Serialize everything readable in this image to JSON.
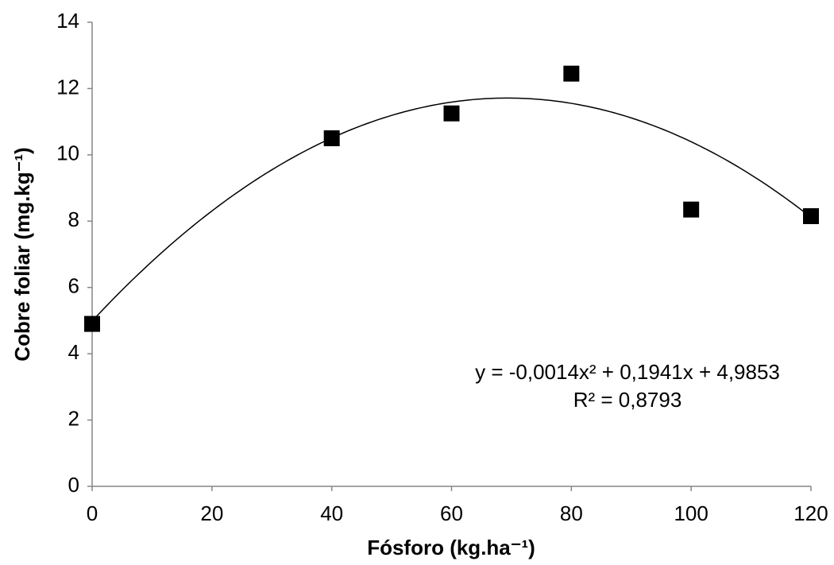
{
  "chart_data": {
    "type": "scatter",
    "x_label": "Fósforo (kg.ha⁻¹)",
    "y_label": "Cobre foliar (mg.kg⁻¹)",
    "x": [
      0,
      40,
      60,
      80,
      100,
      120
    ],
    "values": [
      4.9,
      10.5,
      11.25,
      12.45,
      8.35,
      8.15
    ],
    "color": "#000000",
    "xlim": [
      0,
      120
    ],
    "xticks": [
      0,
      20,
      40,
      60,
      80,
      100,
      120
    ],
    "ylim": [
      0,
      14
    ],
    "yticks": [
      0,
      2,
      4,
      6,
      8,
      10,
      12,
      14
    ],
    "grid": false,
    "trendline": {
      "coefficients": [
        -0.0014,
        0.1941,
        4.9853
      ],
      "color": "#000000"
    },
    "annotations": [
      "y = -0,0014x² + 0,1941x + 4,9853",
      "R² = 0,8793"
    ]
  }
}
